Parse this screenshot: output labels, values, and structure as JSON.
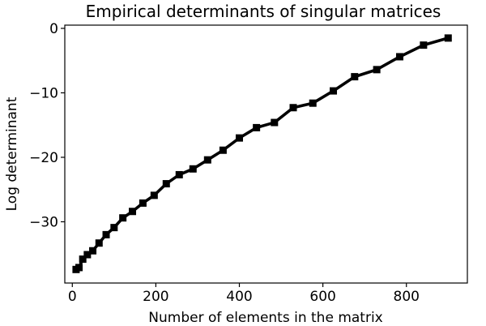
{
  "chart_data": {
    "type": "line",
    "title": "Empirical determinants of singular matrices",
    "xlabel": "Number of elements in the matrix",
    "ylabel": "Log determinant",
    "xlim": [
      -18,
      946
    ],
    "ylim": [
      -39.5,
      0.5
    ],
    "xticks": [
      0,
      200,
      400,
      600,
      800
    ],
    "xtick_labels": [
      "0",
      "200",
      "400",
      "600",
      "800"
    ],
    "yticks": [
      0,
      -10,
      -20,
      -30
    ],
    "ytick_labels": [
      "0",
      "−10",
      "−20",
      "−30"
    ],
    "grid": false,
    "legend": "none",
    "series": [
      {
        "color": "#000000",
        "marker": "square",
        "x": [
          9,
          16,
          25,
          36,
          49,
          64,
          81,
          100,
          121,
          144,
          169,
          196,
          225,
          256,
          289,
          324,
          361,
          400,
          441,
          484,
          529,
          576,
          625,
          676,
          729,
          784,
          841,
          900
        ],
        "y": [
          -37.4,
          -37.1,
          -35.8,
          -35.1,
          -34.5,
          -33.3,
          -32.0,
          -30.9,
          -29.4,
          -28.4,
          -27.1,
          -25.9,
          -24.1,
          -22.7,
          -21.8,
          -20.4,
          -18.9,
          -17.0,
          -15.4,
          -14.6,
          -12.3,
          -11.6,
          -9.7,
          -7.5,
          -6.4,
          -4.4,
          -2.6,
          -1.5
        ]
      }
    ]
  }
}
